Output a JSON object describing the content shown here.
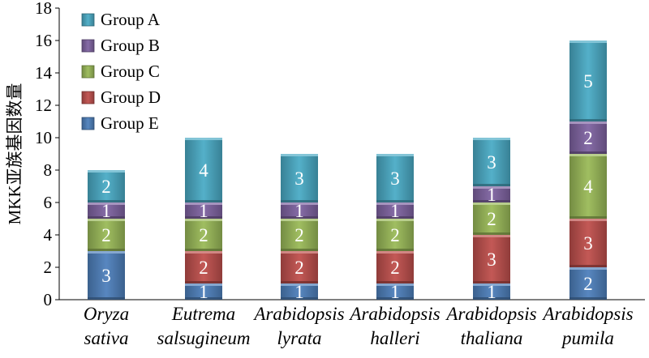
{
  "chart_data": {
    "type": "bar",
    "stacked": true,
    "title": "",
    "xlabel": "",
    "ylabel": "MKK亚族基因数量",
    "ylim": [
      0,
      18
    ],
    "yticks": [
      0,
      2,
      4,
      6,
      8,
      10,
      12,
      14,
      16,
      18
    ],
    "grid": false,
    "legend_position": "top-left",
    "categories": [
      [
        "Oryza",
        "sativa"
      ],
      [
        "Eutrema",
        "salsugineum"
      ],
      [
        "Arabidopsis",
        "lyrata"
      ],
      [
        "Arabidopsis",
        "halleri"
      ],
      [
        "Arabidopsis",
        "thaliana"
      ],
      [
        "Arabidopsis",
        "pumila"
      ]
    ],
    "series": [
      {
        "name": "Group E",
        "color": "#4f81bd",
        "values": [
          3,
          1,
          1,
          1,
          1,
          2
        ]
      },
      {
        "name": "Group D",
        "color": "#c0504d",
        "values": [
          0,
          2,
          2,
          2,
          3,
          3
        ]
      },
      {
        "name": "Group C",
        "color": "#9bbb59",
        "values": [
          2,
          2,
          2,
          2,
          2,
          4
        ]
      },
      {
        "name": "Group B",
        "color": "#8064a2",
        "values": [
          1,
          1,
          1,
          1,
          1,
          2
        ]
      },
      {
        "name": "Group A",
        "color": "#4bacc6",
        "values": [
          2,
          4,
          3,
          3,
          3,
          5
        ]
      }
    ],
    "legend_order": [
      "Group A",
      "Group B",
      "Group C",
      "Group D",
      "Group E"
    ]
  }
}
